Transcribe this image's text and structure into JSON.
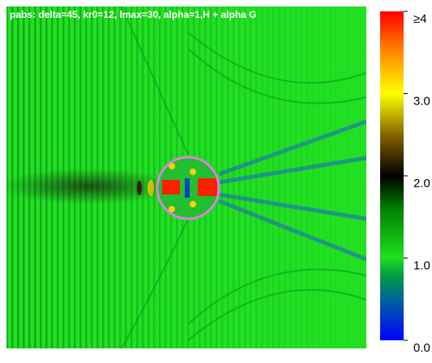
{
  "chart_data": {
    "type": "heatmap",
    "title": "pabs: delta=45, kr0=12, lmax=30, alpha=1,H + alpha G",
    "clim": [
      0,
      4
    ],
    "cticks": [
      {
        "value": 0,
        "label": "0.0"
      },
      {
        "value": 1,
        "label": "1.0"
      },
      {
        "value": 2,
        "label": "2.0"
      },
      {
        "value": 3,
        "label": "3.0"
      },
      {
        "value": 4,
        "label": "≥4"
      }
    ]
  }
}
